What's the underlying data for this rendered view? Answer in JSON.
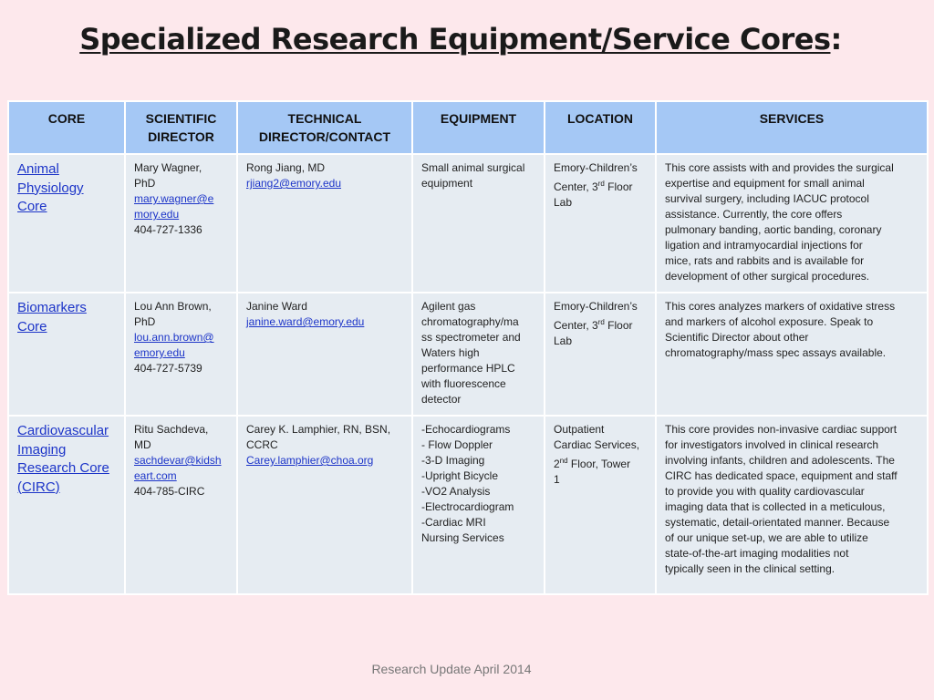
{
  "title": "Specialized Research Equipment/Service Cores",
  "title_suffix": ":",
  "headers": {
    "core": "CORE",
    "scientific_director_1": "SCIENTIFIC",
    "scientific_director_2": "DIRECTOR",
    "technical_director_1": "TECHNICAL",
    "technical_director_2": "DIRECTOR/CONTACT",
    "equipment": "EQUIPMENT",
    "location": "LOCATION",
    "services": "SERVICES"
  },
  "rows": [
    {
      "core": [
        "Animal",
        "Physiology",
        "Core"
      ],
      "sci_lines": [
        "Mary Wagner,",
        "PhD"
      ],
      "sci_email": [
        "mary.wagner@e",
        "mory.edu"
      ],
      "sci_phone": "404-727-1336",
      "tech_lines": [
        "Rong Jiang, MD"
      ],
      "tech_email": "rjiang2@emory.edu",
      "equipment": [
        "Small animal surgical",
        "equipment"
      ],
      "location": {
        "l1": "Emory-Children’s",
        "l2a": "Center, 3",
        "sup": "rd",
        "l2b": " Floor",
        "l3": "Lab"
      },
      "services": [
        "This core assists with and provides the surgical",
        "expertise and equipment for small animal",
        "survival surgery, including IACUC protocol",
        "assistance. Currently, the core offers",
        "pulmonary banding, aortic banding, coronary",
        "ligation and intramyocardial injections for",
        "mice, rats and rabbits and is available for",
        "development of other surgical procedures."
      ]
    },
    {
      "core": [
        "Biomarkers",
        "Core"
      ],
      "sci_lines": [
        "Lou Ann Brown,",
        "PhD"
      ],
      "sci_email": [
        "lou.ann.brown@",
        "emory.edu"
      ],
      "sci_phone": "404-727-5739",
      "tech_lines": [
        "Janine Ward"
      ],
      "tech_email": "janine.ward@emory.edu",
      "equipment": [
        "Agilent gas",
        "chromatography/ma",
        "ss spectrometer and",
        "Waters high",
        "performance HPLC",
        "with fluorescence",
        "detector"
      ],
      "location": {
        "l1": "Emory-Children’s",
        "l2a": "Center, 3",
        "sup": "rd",
        "l2b": " Floor",
        "l3": "Lab"
      },
      "services": [
        "This cores analyzes markers of oxidative stress",
        "and markers of alcohol exposure. Speak to",
        "Scientific Director about other",
        "chromatography/mass spec assays available."
      ]
    },
    {
      "core": [
        "Cardiovascular",
        "Imaging",
        "Research Core",
        "(CIRC)"
      ],
      "sci_lines": [
        "Ritu Sachdeva,",
        "MD"
      ],
      "sci_email": [
        "sachdevar@kidsh",
        "eart.com"
      ],
      "sci_phone": "404-785-CIRC",
      "tech_lines": [
        "Carey K. Lamphier, RN, BSN,",
        "CCRC"
      ],
      "tech_email": "Carey.lamphier@choa.org",
      "equipment": [
        "-Echocardiograms",
        "- Flow Doppler",
        "-3-D Imaging",
        "-Upright Bicycle",
        "-VO2  Analysis",
        "-Electrocardiogram",
        "-Cardiac MRI",
        "Nursing Services"
      ],
      "location": {
        "l1": "Outpatient",
        "l1b": "Cardiac Services,",
        "l2a": "2",
        "sup": "nd",
        "l2b": " Floor, Tower",
        "l3": "1"
      },
      "services": [
        "This core provides non-invasive cardiac support",
        "for investigators involved in clinical research",
        "involving infants, children and adolescents. The",
        "CIRC has dedicated space, equipment and staff",
        "to provide you with quality cardiovascular",
        "imaging data that is collected in a meticulous,",
        "systematic, detail-orientated manner. Because",
        "of our unique set-up, we are able to utilize",
        "state-of-the-art imaging modalities not",
        "typically seen in the clinical setting."
      ]
    }
  ],
  "footer": "Research Update April 2014"
}
